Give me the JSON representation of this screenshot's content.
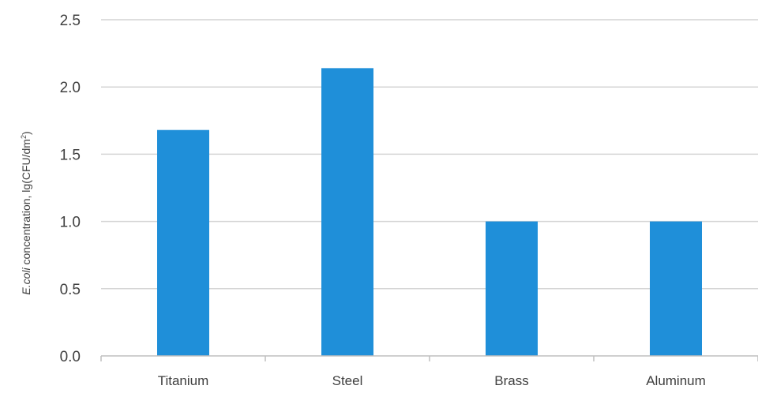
{
  "chart_data": {
    "type": "bar",
    "title": "",
    "categories": [
      "Titanium",
      "Steel",
      "Brass",
      "Aluminum"
    ],
    "values": [
      1.68,
      2.14,
      1.0,
      1.0
    ],
    "ylabel_italic": "E.coli",
    "ylabel_rest": " concentration, lg(CFU/dm",
    "ylabel_sup": "2",
    "ylabel_close": ")",
    "ylim": [
      0,
      2.5
    ],
    "yticks": [
      "0.0",
      "0.5",
      "1.0",
      "1.5",
      "2.0",
      "2.5"
    ],
    "grid": true,
    "legend": "none",
    "bar_color": "#1f8fd9",
    "grid_color": "#d4d4d4",
    "axis_color": "#bfbfbf"
  }
}
